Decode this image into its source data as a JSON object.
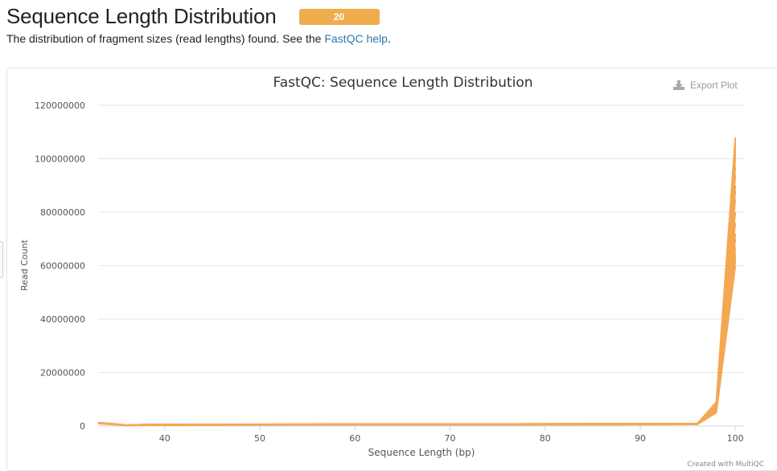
{
  "header": {
    "title": "Sequence Length Distribution",
    "badge_count": "20"
  },
  "description": {
    "prefix": "The distribution of fragment sizes (read lengths) found. See the ",
    "link_text": "FastQC help",
    "suffix": "."
  },
  "toolbar": {
    "export_label": "Export Plot",
    "icon": "download-icon"
  },
  "footer": {
    "credit": "Created with MultiQC"
  },
  "colors": {
    "series": "#f4a852",
    "badge": "#f0ad4e",
    "link": "#2a7ab0"
  },
  "chart_data": {
    "type": "line",
    "title": "FastQC: Sequence Length Distribution",
    "xlabel": "Sequence Length (bp)",
    "ylabel": "Read Count",
    "xlim": [
      33,
      101
    ],
    "ylim": [
      0,
      120000000
    ],
    "x_ticks": [
      40,
      50,
      60,
      70,
      80,
      90,
      100
    ],
    "y_ticks": [
      0,
      20000000,
      40000000,
      60000000,
      80000000,
      100000000,
      120000000
    ],
    "grid": true,
    "legend": "none",
    "series": [
      {
        "x": [
          33,
          34,
          36,
          38,
          96,
          98,
          100
        ],
        "y": [
          1000000,
          800000,
          200000,
          400000,
          600000,
          5000000,
          60000000
        ]
      },
      {
        "x": [
          33,
          34,
          36,
          38,
          96,
          98,
          100
        ],
        "y": [
          900000,
          700000,
          200000,
          400000,
          700000,
          6000000,
          62000000
        ]
      },
      {
        "x": [
          33,
          34,
          36,
          38,
          96,
          98,
          100
        ],
        "y": [
          1100000,
          900000,
          250000,
          450000,
          800000,
          7000000,
          64000000
        ]
      },
      {
        "x": [
          33,
          34,
          36,
          38,
          96,
          98,
          100
        ],
        "y": [
          1200000,
          1000000,
          300000,
          500000,
          900000,
          8000000,
          67000000
        ]
      },
      {
        "x": [
          33,
          34,
          36,
          38,
          96,
          98,
          100
        ],
        "y": [
          1000000,
          800000,
          200000,
          400000,
          700000,
          6500000,
          72000000
        ]
      },
      {
        "x": [
          33,
          34,
          36,
          38,
          96,
          98,
          100
        ],
        "y": [
          1100000,
          900000,
          250000,
          450000,
          800000,
          7500000,
          76000000
        ]
      },
      {
        "x": [
          33,
          34,
          36,
          38,
          96,
          98,
          100
        ],
        "y": [
          1200000,
          1000000,
          300000,
          500000,
          900000,
          8500000,
          80000000
        ]
      },
      {
        "x": [
          33,
          34,
          36,
          38,
          96,
          98,
          100
        ],
        "y": [
          1000000,
          800000,
          200000,
          400000,
          600000,
          6000000,
          85000000
        ]
      },
      {
        "x": [
          33,
          34,
          36,
          38,
          96,
          98,
          100
        ],
        "y": [
          1100000,
          900000,
          250000,
          450000,
          800000,
          7000000,
          88000000
        ]
      },
      {
        "x": [
          33,
          34,
          36,
          38,
          96,
          98,
          100
        ],
        "y": [
          1200000,
          1000000,
          300000,
          500000,
          900000,
          8000000,
          90000000
        ]
      },
      {
        "x": [
          33,
          34,
          36,
          38,
          96,
          98,
          100
        ],
        "y": [
          1000000,
          800000,
          200000,
          400000,
          700000,
          6500000,
          94000000
        ]
      },
      {
        "x": [
          33,
          34,
          36,
          38,
          96,
          98,
          100
        ],
        "y": [
          1100000,
          900000,
          250000,
          450000,
          800000,
          7500000,
          97000000
        ]
      },
      {
        "x": [
          33,
          34,
          36,
          38,
          96,
          98,
          100
        ],
        "y": [
          1200000,
          1000000,
          300000,
          500000,
          900000,
          8500000,
          100000000
        ]
      },
      {
        "x": [
          33,
          34,
          36,
          38,
          96,
          98,
          100
        ],
        "y": [
          1000000,
          800000,
          200000,
          400000,
          600000,
          6000000,
          102000000
        ]
      },
      {
        "x": [
          33,
          34,
          36,
          38,
          96,
          98,
          100
        ],
        "y": [
          1100000,
          900000,
          250000,
          450000,
          800000,
          7000000,
          104000000
        ]
      },
      {
        "x": [
          33,
          34,
          36,
          38,
          96,
          98,
          100
        ],
        "y": [
          1200000,
          1000000,
          300000,
          500000,
          900000,
          8000000,
          106000000
        ]
      },
      {
        "x": [
          33,
          34,
          36,
          38,
          96,
          98,
          100
        ],
        "y": [
          1000000,
          800000,
          200000,
          400000,
          700000,
          9000000,
          108000000
        ]
      },
      {
        "x": [
          33,
          34,
          36,
          38,
          96,
          98,
          100
        ],
        "y": [
          1100000,
          900000,
          250000,
          450000,
          800000,
          7500000,
          70000000
        ]
      },
      {
        "x": [
          33,
          34,
          36,
          38,
          96,
          98,
          100
        ],
        "y": [
          1200000,
          1000000,
          300000,
          500000,
          900000,
          6500000,
          65000000
        ]
      },
      {
        "x": [
          33,
          34,
          36,
          38,
          96,
          98,
          100
        ],
        "y": [
          1000000,
          800000,
          200000,
          400000,
          600000,
          5500000,
          63000000
        ]
      }
    ]
  }
}
